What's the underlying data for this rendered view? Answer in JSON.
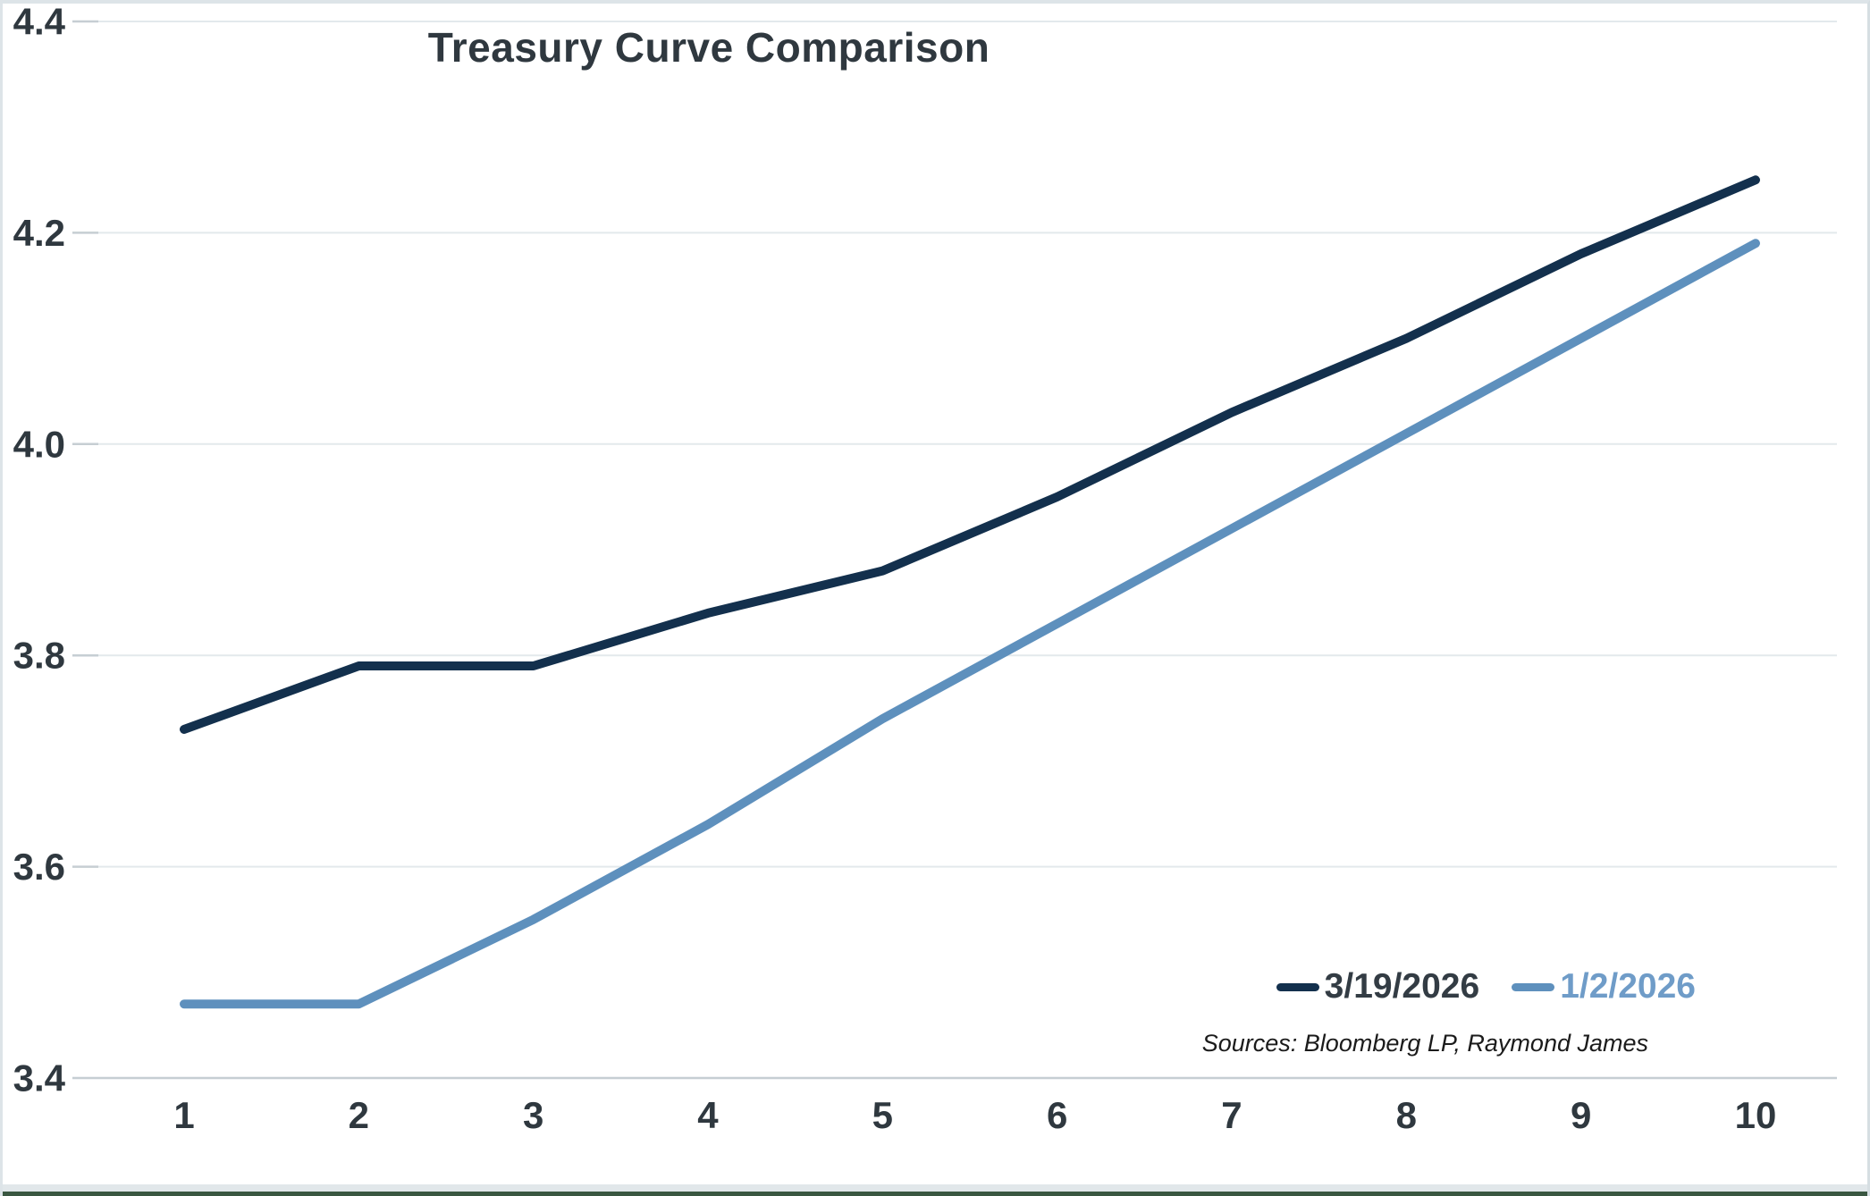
{
  "chart_data": {
    "type": "line",
    "title": "Treasury Curve Comparison",
    "categories": [
      1,
      2,
      3,
      4,
      5,
      6,
      7,
      8,
      9,
      10
    ],
    "series": [
      {
        "name": "3/19/2026",
        "color": "#13304d",
        "label_color": "#333c44",
        "values": [
          3.73,
          3.79,
          3.79,
          3.84,
          3.88,
          3.95,
          4.03,
          4.1,
          4.18,
          4.25
        ]
      },
      {
        "name": "1/2/2026",
        "color": "#5e90bd",
        "label_color": "#6f9cc8",
        "values": [
          3.47,
          3.47,
          3.55,
          3.64,
          3.74,
          3.83,
          3.92,
          4.01,
          4.1,
          4.19
        ]
      }
    ],
    "xlabel": "",
    "ylabel": "",
    "ylim": [
      3.4,
      4.4
    ],
    "yticks": [
      3.4,
      3.6,
      3.8,
      4.0,
      4.2,
      4.4
    ],
    "ytick_labels": [
      "3.4",
      "3.6",
      "3.8",
      "4.0",
      "4.2",
      "4.4"
    ],
    "xtick_labels": [
      "1",
      "2",
      "3",
      "4",
      "5",
      "6",
      "7",
      "8",
      "9",
      "10"
    ],
    "grid": true,
    "legend_position": "bottom-right",
    "source_note": "Sources: Bloomberg LP, Raymond James"
  },
  "style_colors": {
    "axis_text": "#2f383f",
    "gridline": "#e3e9ec",
    "axis_line": "#c6ced3"
  }
}
